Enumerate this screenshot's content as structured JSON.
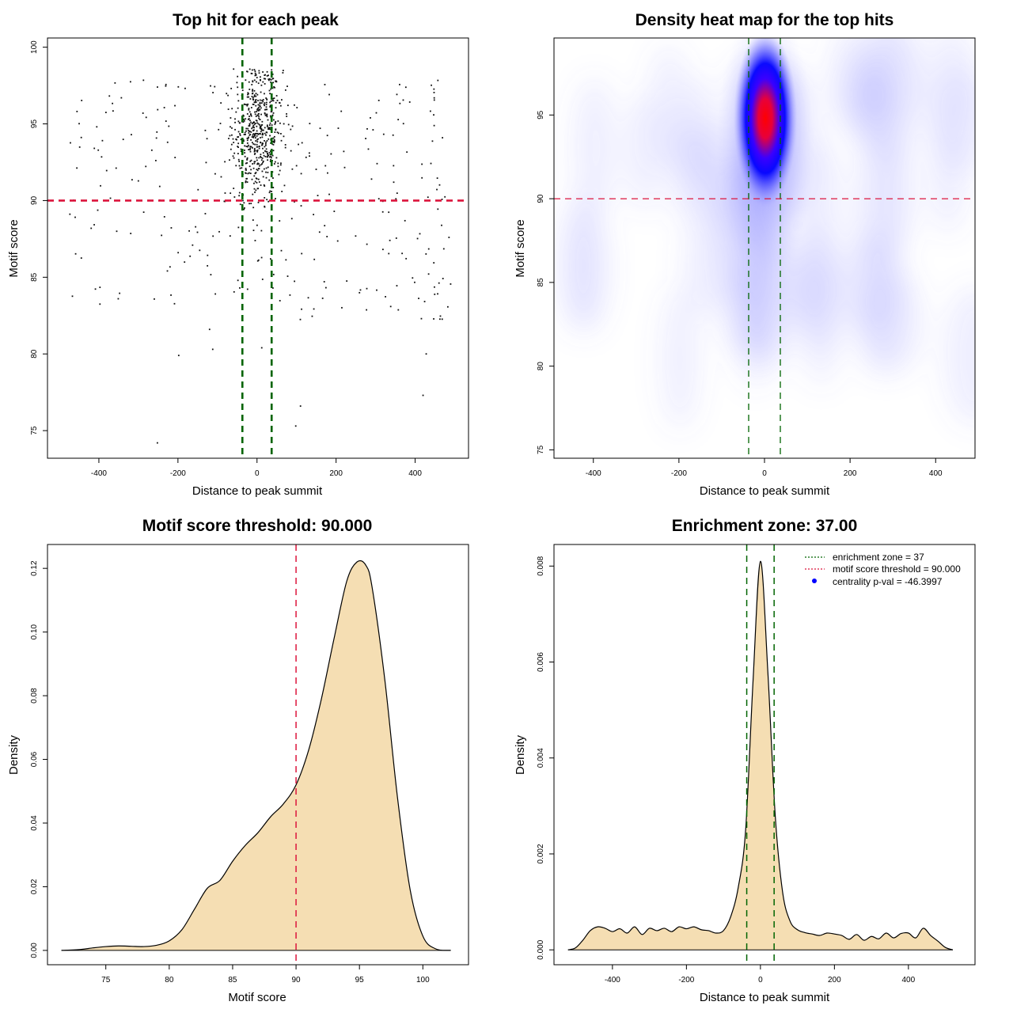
{
  "chart_data": [
    {
      "id": "scatter",
      "type": "scatter",
      "title": "Top hit for each peak",
      "xlabel": "Distance to peak summit",
      "ylabel": "Motif score",
      "xlim": [
        -530,
        535
      ],
      "ylim": [
        73.2,
        100.6
      ],
      "xticks": [
        -400,
        -200,
        0,
        200,
        400
      ],
      "yticks": [
        75,
        80,
        85,
        90,
        95,
        100
      ],
      "grid": false,
      "vlines": [
        {
          "x": -37,
          "color": "#006400",
          "style": "dashed"
        },
        {
          "x": 37,
          "color": "#006400",
          "style": "dashed"
        }
      ],
      "hlines": [
        {
          "y": 90,
          "color": "#dc143c",
          "style": "dashed"
        }
      ],
      "points": {
        "description_free_generation": true,
        "cluster": {
          "center_x": 0,
          "spread_x": 32,
          "center_y": 94.5,
          "spread_y": 2.2,
          "count": 560
        },
        "background": {
          "x_range": [
            -480,
            490
          ],
          "y_range": [
            82.2,
            98
          ],
          "count": 290
        },
        "low_outliers": [
          [
            -252,
            74.2
          ],
          [
            98,
            75.3
          ],
          [
            110,
            76.6
          ],
          [
            420,
            77.3
          ],
          [
            -198,
            79.9
          ],
          [
            12,
            80.4
          ],
          [
            -112,
            80.3
          ],
          [
            428,
            80.0
          ],
          [
            -120,
            81.6
          ]
        ]
      }
    },
    {
      "id": "heatmap",
      "type": "heatmap",
      "title": "Density heat map for the top hits",
      "xlabel": "Distance to peak summit",
      "ylabel": "Motif score",
      "xlim": [
        -492,
        492
      ],
      "ylim": [
        74.5,
        99.6
      ],
      "xticks": [
        -400,
        -200,
        0,
        200,
        400
      ],
      "yticks": [
        75,
        80,
        85,
        90,
        95
      ],
      "grid": false,
      "colors": [
        "#ffffff",
        "#0000ff",
        "#ff0000"
      ],
      "peak": {
        "x": 2,
        "y": 94.8
      },
      "vlines": [
        {
          "x": -37,
          "color": "#006400",
          "style": "dashed"
        },
        {
          "x": 37,
          "color": "#006400",
          "style": "dashed"
        }
      ],
      "hlines": [
        {
          "y": 90,
          "color": "#dc143c",
          "style": "dashed"
        }
      ]
    },
    {
      "id": "score_density",
      "type": "area",
      "title": "Motif score threshold: 90.000",
      "xlabel": "Motif score",
      "ylabel": "Density",
      "xlim": [
        70.4,
        103.6
      ],
      "ylim": [
        -0.0045,
        0.1275
      ],
      "xticks": [
        75,
        80,
        85,
        90,
        95,
        100
      ],
      "yticks": [
        0.0,
        0.02,
        0.04,
        0.06,
        0.08,
        0.1,
        0.12
      ],
      "ytick_labels": [
        "0.00",
        "0.02",
        "0.04",
        "0.06",
        "0.08",
        "0.10",
        "0.12"
      ],
      "fill": "#f5deb3",
      "x": [
        71.5,
        73,
        74,
        75,
        76,
        77,
        78,
        79,
        80,
        81,
        82,
        83,
        84,
        85,
        86,
        87,
        88,
        89,
        90,
        91,
        92,
        93,
        94,
        94.8,
        95.5,
        96,
        97,
        98,
        99,
        100,
        101,
        102.2
      ],
      "y": [
        0.0,
        0.0003,
        0.0008,
        0.0012,
        0.0014,
        0.0013,
        0.0012,
        0.0016,
        0.003,
        0.0065,
        0.013,
        0.0195,
        0.022,
        0.028,
        0.033,
        0.037,
        0.042,
        0.046,
        0.052,
        0.063,
        0.079,
        0.098,
        0.116,
        0.122,
        0.121,
        0.114,
        0.085,
        0.048,
        0.019,
        0.0045,
        0.0005,
        0.0
      ],
      "vlines": [
        {
          "x": 90,
          "color": "#dc143c",
          "style": "dashed"
        }
      ]
    },
    {
      "id": "distance_density",
      "type": "area",
      "title": "Enrichment zone: 37.00",
      "xlabel": "Distance to peak summit",
      "ylabel": "Density",
      "xlim": [
        -558,
        580
      ],
      "ylim": [
        -0.00031,
        0.00845
      ],
      "xticks": [
        -400,
        -200,
        0,
        200,
        400
      ],
      "yticks": [
        0.0,
        0.002,
        0.004,
        0.006,
        0.008
      ],
      "ytick_labels": [
        "0.000",
        "0.002",
        "0.004",
        "0.006",
        "0.008"
      ],
      "fill": "#f5deb3",
      "x": [
        -520,
        -500,
        -480,
        -460,
        -440,
        -420,
        -400,
        -380,
        -360,
        -340,
        -320,
        -300,
        -280,
        -260,
        -240,
        -220,
        -200,
        -180,
        -160,
        -140,
        -120,
        -100,
        -80,
        -60,
        -40,
        -20,
        0,
        20,
        40,
        60,
        80,
        100,
        120,
        140,
        160,
        180,
        200,
        220,
        240,
        260,
        280,
        300,
        320,
        340,
        360,
        380,
        400,
        420,
        440,
        460,
        480,
        500,
        520
      ],
      "y": [
        0.0,
        4e-05,
        0.0002,
        0.0004,
        0.00048,
        0.00045,
        0.00038,
        0.00044,
        0.00035,
        0.00048,
        0.00032,
        0.00045,
        0.0004,
        0.00045,
        0.00038,
        0.00048,
        0.00044,
        0.00048,
        0.00042,
        0.0004,
        0.00035,
        0.0004,
        0.0007,
        0.0013,
        0.0025,
        0.0056,
        0.0081,
        0.0058,
        0.0028,
        0.0012,
        0.0006,
        0.00042,
        0.00036,
        0.00033,
        0.0003,
        0.00035,
        0.00033,
        0.0003,
        0.00022,
        0.00032,
        0.0002,
        0.00028,
        0.00023,
        0.00035,
        0.00025,
        0.00034,
        0.00035,
        0.00025,
        0.00045,
        0.0003,
        0.00018,
        5e-05,
        0.0
      ],
      "vlines": [
        {
          "x": -37,
          "color": "#006400",
          "style": "dashed"
        },
        {
          "x": 37,
          "color": "#006400",
          "style": "dashed"
        }
      ],
      "legend": {
        "position": "top-right",
        "items": [
          {
            "label": "enrichment zone = 37",
            "color": "#006400",
            "style": "dotted-line"
          },
          {
            "label": "motif score threshold = 90.000",
            "color": "#dc143c",
            "style": "dotted-line"
          },
          {
            "label": "centrality p-val = -46.3997",
            "color": "#0000ff",
            "style": "dot"
          }
        ]
      }
    }
  ]
}
